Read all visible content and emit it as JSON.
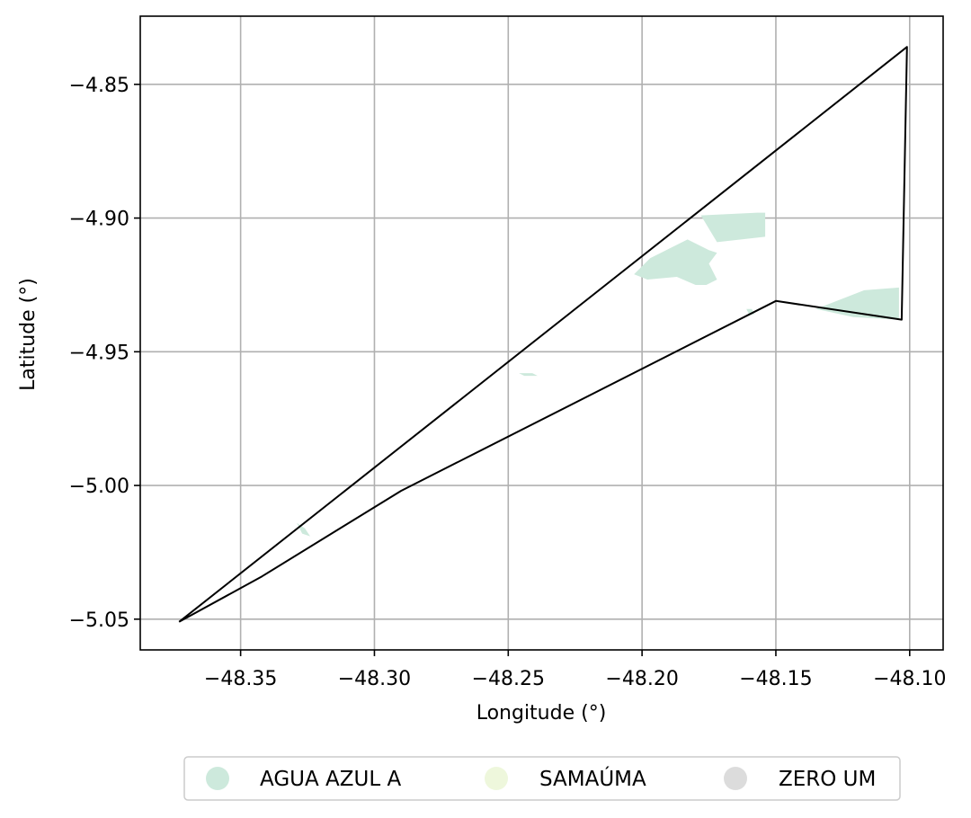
{
  "chart_data": {
    "type": "map",
    "title": "",
    "xlabel": "Longitude (°)",
    "ylabel": "Latitude (°)",
    "xlim": [
      -48.3875,
      -48.0875
    ],
    "ylim": [
      -5.0615,
      -4.8245
    ],
    "xticks": [
      -48.35,
      -48.3,
      -48.25,
      -48.2,
      -48.15,
      -48.1
    ],
    "xtick_labels": [
      "−48.35",
      "−48.30",
      "−48.25",
      "−48.20",
      "−48.15",
      "−48.10"
    ],
    "yticks": [
      -4.85,
      -4.9,
      -4.95,
      -5.0,
      -5.05
    ],
    "ytick_labels": [
      "−4.85",
      "−4.90",
      "−4.95",
      "−5.00",
      "−5.05"
    ],
    "grid": true,
    "legend_position": "bottom-center",
    "boundary": {
      "name": "outline",
      "color": "#000000",
      "coords": [
        [
          -48.373,
          -5.051
        ],
        [
          -48.101,
          -4.836
        ],
        [
          -48.103,
          -4.938
        ],
        [
          -48.15,
          -4.931
        ],
        [
          -48.29,
          -5.002
        ],
        [
          -48.342,
          -5.034
        ],
        [
          -48.373,
          -5.051
        ]
      ]
    },
    "legend": [
      {
        "label": "AGUA AZUL A",
        "color": "#cde9dc"
      },
      {
        "label": "SAMAÚMA",
        "color": "#eef7dc"
      },
      {
        "label": "ZERO UM",
        "color": "#dcdcdc"
      }
    ],
    "regions": [
      {
        "class": "AGUA AZUL A",
        "color": "#cde9dc",
        "coords": [
          [
            -48.178,
            -4.899
          ],
          [
            -48.157,
            -4.898
          ],
          [
            -48.154,
            -4.898
          ],
          [
            -48.154,
            -4.907
          ],
          [
            -48.172,
            -4.909
          ]
        ]
      },
      {
        "class": "AGUA AZUL A",
        "color": "#cde9dc",
        "coords": [
          [
            -48.197,
            -4.915
          ],
          [
            -48.183,
            -4.908
          ],
          [
            -48.175,
            -4.912
          ],
          [
            -48.172,
            -4.913
          ],
          [
            -48.175,
            -4.917
          ],
          [
            -48.172,
            -4.923
          ],
          [
            -48.176,
            -4.925
          ],
          [
            -48.18,
            -4.925
          ],
          [
            -48.187,
            -4.922
          ],
          [
            -48.198,
            -4.923
          ],
          [
            -48.203,
            -4.921
          ]
        ]
      },
      {
        "class": "AGUA AZUL A",
        "color": "#cde9dc",
        "coords": [
          [
            -48.135,
            -4.934
          ],
          [
            -48.117,
            -4.927
          ],
          [
            -48.104,
            -4.926
          ],
          [
            -48.104,
            -4.938
          ],
          [
            -48.121,
            -4.937
          ]
        ]
      },
      {
        "class": "AGUA AZUL A",
        "color": "#cde9dc",
        "coords": [
          [
            -48.161,
            -4.934
          ],
          [
            -48.159,
            -4.934
          ],
          [
            -48.158,
            -4.936
          ],
          [
            -48.16,
            -4.936
          ]
        ]
      },
      {
        "class": "AGUA AZUL A",
        "color": "#cde9dc",
        "coords": [
          [
            -48.246,
            -4.958
          ],
          [
            -48.241,
            -4.958
          ],
          [
            -48.239,
            -4.959
          ],
          [
            -48.244,
            -4.959
          ]
        ]
      },
      {
        "class": "AGUA AZUL A",
        "color": "#cde9dc",
        "coords": [
          [
            -48.329,
            -5.014
          ],
          [
            -48.326,
            -5.016
          ],
          [
            -48.324,
            -5.019
          ],
          [
            -48.327,
            -5.018
          ]
        ]
      }
    ]
  }
}
